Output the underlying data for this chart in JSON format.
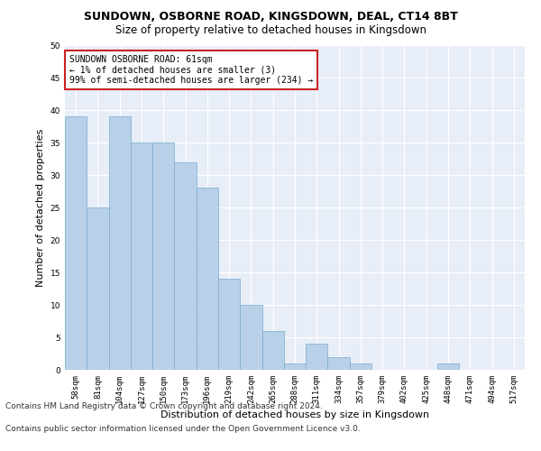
{
  "title1": "SUNDOWN, OSBORNE ROAD, KINGSDOWN, DEAL, CT14 8BT",
  "title2": "Size of property relative to detached houses in Kingsdown",
  "xlabel": "Distribution of detached houses by size in Kingsdown",
  "ylabel": "Number of detached properties",
  "bin_labels": [
    "58sqm",
    "81sqm",
    "104sqm",
    "127sqm",
    "150sqm",
    "173sqm",
    "196sqm",
    "219sqm",
    "242sqm",
    "265sqm",
    "288sqm",
    "311sqm",
    "334sqm",
    "357sqm",
    "379sqm",
    "402sqm",
    "425sqm",
    "448sqm",
    "471sqm",
    "494sqm",
    "517sqm"
  ],
  "bar_values": [
    39,
    25,
    39,
    35,
    35,
    32,
    28,
    14,
    10,
    6,
    1,
    4,
    2,
    1,
    0,
    0,
    0,
    1,
    0,
    0,
    0
  ],
  "bar_color": "#b8d0e8",
  "bar_edge_color": "#7aabcf",
  "annotation_text": "SUNDOWN OSBORNE ROAD: 61sqm\n← 1% of detached houses are smaller (3)\n99% of semi-detached houses are larger (234) →",
  "annotation_box_color": "#cc2222",
  "ylim": [
    0,
    50
  ],
  "yticks": [
    0,
    5,
    10,
    15,
    20,
    25,
    30,
    35,
    40,
    45,
    50
  ],
  "footer1": "Contains HM Land Registry data © Crown copyright and database right 2024.",
  "footer2": "Contains public sector information licensed under the Open Government Licence v3.0.",
  "bg_color": "#e8eef8",
  "grid_color": "#ffffff",
  "title_fontsize": 9,
  "subtitle_fontsize": 8.5,
  "axis_label_fontsize": 8,
  "tick_fontsize": 6.5,
  "annotation_fontsize": 7,
  "footer_fontsize": 6.5
}
